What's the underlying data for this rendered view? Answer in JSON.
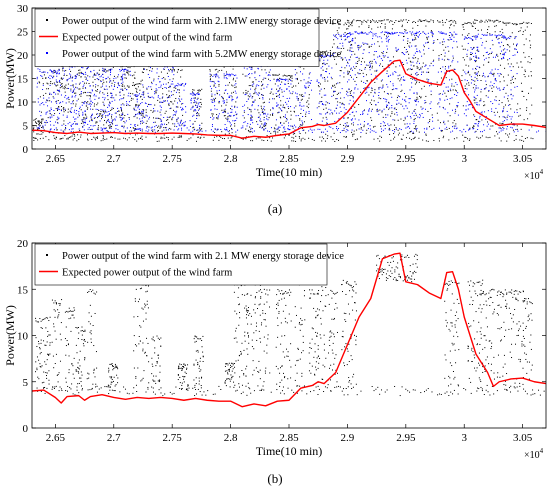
{
  "chart_data": [
    {
      "panel_label": "(a)",
      "type": "scatter",
      "xlabel": "Time(10 min)",
      "ylabel": "Power(MW)",
      "x_multiplier": "×10",
      "x_multiplier_exp": "4",
      "xlim": [
        2.63,
        3.07
      ],
      "ylim": [
        0,
        30
      ],
      "xticks": [
        2.65,
        2.7,
        2.75,
        2.8,
        2.85,
        2.9,
        2.95,
        3.0,
        3.05
      ],
      "xtick_labels": [
        "2.65",
        "2.7",
        "2.75",
        "2.8",
        "2.85",
        "2.9",
        "2.95",
        "3",
        "3.05"
      ],
      "yticks": [
        0,
        5,
        10,
        15,
        20,
        25,
        30
      ],
      "ytick_labels": [
        "0",
        "5",
        "10",
        "15",
        "20",
        "25",
        "30"
      ],
      "legend": "top-left",
      "grid": false,
      "series": [
        {
          "name": "Power output of the wind farm with 2.1MW energy storage device",
          "style": "dots",
          "color": "#000000",
          "baseline": 2.1,
          "spikes": [
            [
              2.636,
              6.5,
              2
            ],
            [
              2.645,
              21,
              4
            ],
            [
              2.655,
              19,
              2
            ],
            [
              2.662,
              18,
              3
            ],
            [
              2.672,
              21,
              3
            ],
            [
              2.681,
              22,
              5
            ],
            [
              2.688,
              20,
              2
            ],
            [
              2.695,
              17,
              2
            ],
            [
              2.703,
              21,
              3
            ],
            [
              2.713,
              18,
              3
            ],
            [
              2.722,
              14,
              2
            ],
            [
              2.732,
              23,
              4
            ],
            [
              2.744,
              21,
              2
            ],
            [
              2.753,
              17,
              3
            ],
            [
              2.772,
              13,
              2
            ],
            [
              2.787,
              17,
              2
            ],
            [
              2.799,
              18,
              3
            ],
            [
              2.815,
              22,
              2
            ],
            [
              2.823,
              25,
              3
            ],
            [
              2.831,
              22,
              2
            ],
            [
              2.845,
              16,
              4
            ],
            [
              2.858,
              25,
              2
            ],
            [
              2.864,
              23,
              2
            ],
            [
              2.88,
              21,
              2
            ],
            [
              2.896,
              27,
              4
            ],
            [
              2.911,
              27.5,
              5
            ],
            [
              2.927,
              27.5,
              3
            ],
            [
              2.947,
              27.5,
              6
            ],
            [
              2.966,
              27.5,
              4
            ],
            [
              2.986,
              27.5,
              4
            ],
            [
              3.005,
              27,
              3
            ],
            [
              3.021,
              27.5,
              6
            ],
            [
              3.039,
              27,
              3
            ],
            [
              3.052,
              27,
              3
            ]
          ]
        },
        {
          "name": "Expected power output of the wind farm",
          "style": "line",
          "color": "#ff0000",
          "x": [
            2.63,
            2.64,
            2.65,
            2.66,
            2.67,
            2.68,
            2.69,
            2.7,
            2.71,
            2.72,
            2.73,
            2.74,
            2.75,
            2.76,
            2.77,
            2.78,
            2.79,
            2.8,
            2.81,
            2.82,
            2.83,
            2.84,
            2.85,
            2.86,
            2.87,
            2.875,
            2.88,
            2.89,
            2.9,
            2.91,
            2.92,
            2.93,
            2.94,
            2.945,
            2.95,
            2.96,
            2.97,
            2.98,
            2.985,
            2.99,
            2.995,
            3.0,
            3.005,
            3.01,
            3.02,
            3.03,
            3.04,
            3.05,
            3.06,
            3.07
          ],
          "y": [
            4.0,
            3.9,
            3.5,
            3.3,
            3.6,
            3.3,
            3.4,
            3.5,
            3.3,
            3.4,
            3.3,
            3.3,
            3.4,
            3.3,
            3.2,
            3.0,
            2.9,
            2.9,
            2.3,
            2.7,
            2.5,
            2.9,
            3.2,
            4.5,
            4.8,
            5.2,
            5.0,
            5.5,
            7.8,
            11.0,
            14.2,
            16.5,
            18.7,
            18.9,
            16.0,
            14.8,
            14.0,
            13.6,
            16.5,
            16.8,
            15.5,
            12.0,
            10.2,
            8.0,
            6.5,
            5.0,
            5.3,
            5.3,
            5.0,
            4.6
          ]
        },
        {
          "name": "Power output of the wind farm with 5.2MW energy storage device",
          "style": "dots",
          "color": "#0000ff",
          "baseline": 4.0,
          "spikes": [
            [
              2.641,
              20,
              3
            ],
            [
              2.65,
              17,
              2
            ],
            [
              2.66,
              21,
              4
            ],
            [
              2.67,
              18,
              3
            ],
            [
              2.678,
              21,
              2
            ],
            [
              2.686,
              19,
              3
            ],
            [
              2.695,
              17,
              2
            ],
            [
              2.702,
              19,
              3
            ],
            [
              2.711,
              17,
              2
            ],
            [
              2.722,
              12,
              2
            ],
            [
              2.734,
              20,
              4
            ],
            [
              2.747,
              18,
              3
            ],
            [
              2.758,
              14,
              2
            ],
            [
              2.77,
              12,
              2
            ],
            [
              2.787,
              16,
              2
            ],
            [
              2.8,
              16,
              3
            ],
            [
              2.815,
              19,
              2
            ],
            [
              2.823,
              22,
              3
            ],
            [
              2.833,
              20,
              2
            ],
            [
              2.846,
              15,
              3
            ],
            [
              2.858,
              22,
              2
            ],
            [
              2.866,
              21,
              2
            ],
            [
              2.881,
              20,
              3
            ],
            [
              2.897,
              24.5,
              4
            ],
            [
              2.912,
              25,
              5
            ],
            [
              2.93,
              25,
              3
            ],
            [
              2.947,
              25,
              6
            ],
            [
              2.966,
              25,
              4
            ],
            [
              2.987,
              25,
              4
            ],
            [
              3.007,
              24,
              3
            ],
            [
              3.022,
              24.5,
              6
            ],
            [
              3.04,
              24,
              3
            ]
          ]
        }
      ]
    },
    {
      "panel_label": "(b)",
      "type": "scatter",
      "xlabel": "Time(10 min)",
      "ylabel": "Power(MW)",
      "x_multiplier": "×10",
      "x_multiplier_exp": "4",
      "xlim": [
        2.63,
        3.07
      ],
      "ylim": [
        0,
        20
      ],
      "xticks": [
        2.65,
        2.7,
        2.75,
        2.8,
        2.85,
        2.9,
        2.95,
        3.0,
        3.05
      ],
      "xtick_labels": [
        "2.65",
        "2.7",
        "2.75",
        "2.8",
        "2.85",
        "2.9",
        "2.95",
        "3",
        "3.05"
      ],
      "yticks": [
        0,
        5,
        10,
        15,
        20
      ],
      "ytick_labels": [
        "0",
        "5",
        "10",
        "15",
        "20"
      ],
      "legend": "top-left",
      "grid": false,
      "series": [
        {
          "name": "Power output of the wind farm with 2.1 MW energy storage device",
          "style": "dots",
          "color": "#000000",
          "baseline": 4.0,
          "spikes": [
            [
              2.64,
              12,
              3
            ],
            [
              2.652,
              14,
              2
            ],
            [
              2.663,
              13,
              2
            ],
            [
              2.672,
              11,
              2
            ],
            [
              2.682,
              15,
              2
            ],
            [
              2.7,
              7,
              2
            ],
            [
              2.724,
              16,
              3
            ],
            [
              2.737,
              10,
              2
            ],
            [
              2.76,
              7,
              2
            ],
            [
              2.773,
              10,
              2
            ],
            [
              2.8,
              7,
              2
            ],
            [
              2.81,
              16,
              3
            ],
            [
              2.82,
              16,
              3
            ],
            [
              2.83,
              15,
              2
            ],
            [
              2.846,
              15,
              3
            ],
            [
              2.86,
              16,
              2
            ],
            [
              2.872,
              15,
              2
            ],
            [
              2.878,
              16,
              2
            ],
            [
              2.888,
              15,
              2
            ],
            [
              2.902,
              16,
              3
            ],
            [
              2.99,
              16,
              3
            ],
            [
              3.01,
              16,
              3
            ],
            [
              3.02,
              15,
              3
            ],
            [
              3.033,
              15,
              2
            ],
            [
              3.045,
              15,
              3
            ],
            [
              3.055,
              14,
              2
            ]
          ],
          "plateau": [
            2.925,
            2.96,
            15.8,
            18.8
          ]
        },
        {
          "name": "Expected power output of the wind farm",
          "style": "line",
          "color": "#ff0000",
          "x": [
            2.63,
            2.64,
            2.65,
            2.655,
            2.66,
            2.67,
            2.675,
            2.68,
            2.69,
            2.7,
            2.71,
            2.72,
            2.73,
            2.74,
            2.75,
            2.76,
            2.77,
            2.78,
            2.79,
            2.8,
            2.81,
            2.82,
            2.83,
            2.84,
            2.85,
            2.86,
            2.87,
            2.875,
            2.88,
            2.89,
            2.9,
            2.91,
            2.92,
            2.93,
            2.94,
            2.945,
            2.95,
            2.96,
            2.97,
            2.98,
            2.985,
            2.99,
            2.995,
            3.0,
            3.005,
            3.01,
            3.02,
            3.025,
            3.03,
            3.04,
            3.05,
            3.06,
            3.07
          ],
          "y": [
            4.0,
            4.1,
            3.3,
            2.7,
            3.4,
            3.5,
            3.0,
            3.4,
            3.6,
            3.3,
            3.1,
            3.3,
            3.2,
            3.3,
            3.2,
            3.0,
            3.2,
            3.0,
            2.9,
            2.9,
            2.3,
            2.6,
            2.4,
            2.9,
            3.0,
            4.3,
            4.6,
            5.0,
            4.8,
            6.0,
            9.0,
            12.0,
            14.0,
            18.3,
            18.8,
            18.9,
            15.8,
            15.5,
            14.6,
            14.0,
            16.8,
            16.9,
            15.0,
            12.0,
            10.0,
            8.0,
            6.0,
            4.5,
            5.0,
            5.3,
            5.4,
            5.0,
            4.8
          ]
        }
      ]
    }
  ]
}
